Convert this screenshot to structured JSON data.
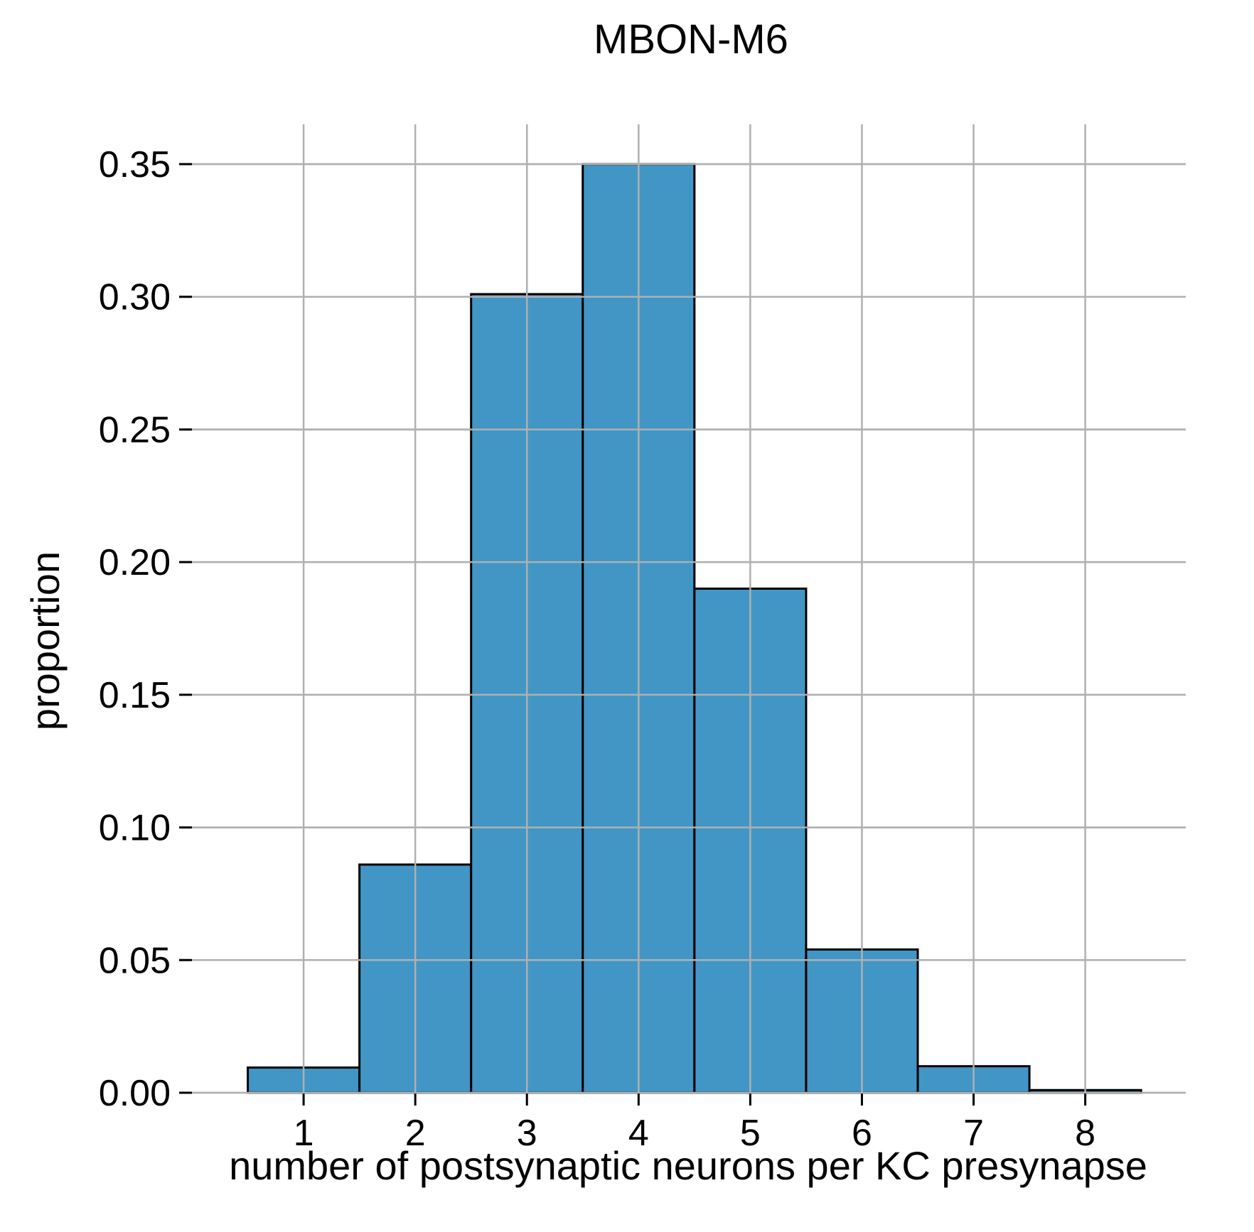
{
  "chart_data": {
    "type": "bar",
    "title": "MBON-M6",
    "xlabel": "number of postsynaptic neurons per KC presynapse",
    "ylabel": "proportion",
    "categories": [
      "1",
      "2",
      "3",
      "4",
      "5",
      "6",
      "7",
      "8"
    ],
    "x": [
      1,
      2,
      3,
      4,
      5,
      6,
      7,
      8
    ],
    "values": [
      0.0095,
      0.086,
      0.301,
      0.35,
      0.19,
      0.054,
      0.01,
      0.001
    ],
    "xlim": [
      0.0,
      8.9
    ],
    "ylim": [
      0,
      0.365
    ],
    "yticks": [
      0.0,
      0.05,
      0.1,
      0.15,
      0.2,
      0.25,
      0.3,
      0.35
    ],
    "ytick_labels": [
      "0.00",
      "0.05",
      "0.10",
      "0.15",
      "0.20",
      "0.25",
      "0.30",
      "0.35"
    ],
    "grid": true,
    "legend": "none",
    "bar_color": "#4196c5",
    "edge_color": "#000000",
    "grid_color": "#b0b0b0"
  }
}
